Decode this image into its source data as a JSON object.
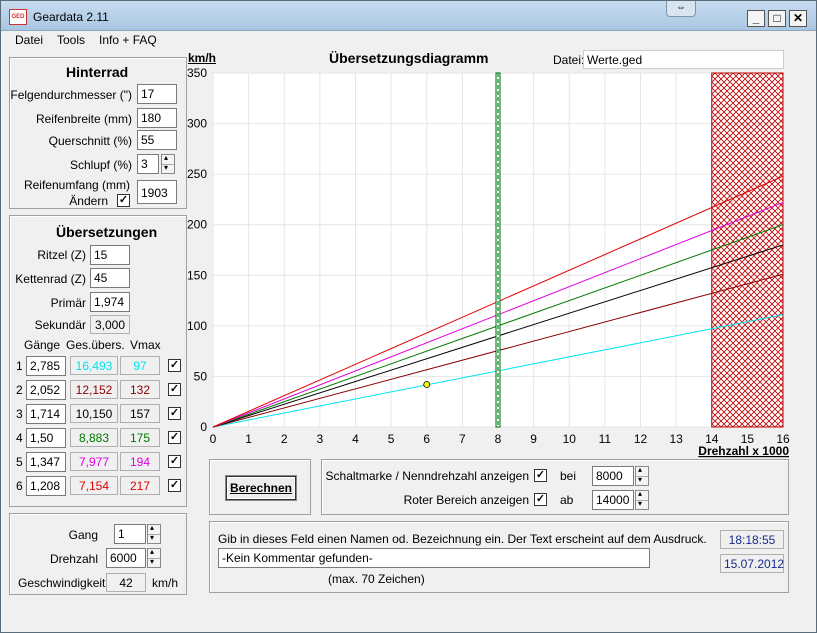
{
  "window": {
    "title": "Geardata 2.11",
    "icon": "GED"
  },
  "menu": [
    "Datei",
    "Tools",
    "Info + FAQ"
  ],
  "hinterrad": {
    "title": "Hinterrad",
    "felgen_label": "Felgendurchmesser (\")",
    "felgen_value": "17",
    "breite_label": "Reifenbreite (mm)",
    "breite_value": "180",
    "quer_label": "Querschnitt (%)",
    "quer_value": "55",
    "schlupf_label": "Schlupf (%)",
    "schlupf_value": "3",
    "umfang_label": "Reifenumfang (mm)",
    "aendern_label": "Ändern",
    "umfang_value": "1903"
  },
  "uebersetzungen": {
    "title": "Übersetzungen",
    "ritzel_label": "Ritzel (Z)",
    "ritzel_value": "15",
    "kettenrad_label": "Kettenrad (Z)",
    "kettenrad_value": "45",
    "primaer_label": "Primär",
    "primaer_value": "1,974",
    "sekundaer_label": "Sekundär",
    "sekundaer_value": "3,000",
    "col_gaenge": "Gänge",
    "col_gesuebers": "Ges.übers.",
    "col_vmax": "Vmax",
    "gears": [
      {
        "num": "1",
        "ratio": "2,785",
        "total": "16,493",
        "vmax": "97",
        "color": "#00e5ee"
      },
      {
        "num": "2",
        "ratio": "2,052",
        "total": "12,152",
        "vmax": "132",
        "color": "#8b0000"
      },
      {
        "num": "3",
        "ratio": "1,714",
        "total": "10,150",
        "vmax": "157",
        "color": "#000000"
      },
      {
        "num": "4",
        "ratio": "1,50",
        "total": "8,883",
        "vmax": "175",
        "color": "#007a00"
      },
      {
        "num": "5",
        "ratio": "1,347",
        "total": "7,977",
        "vmax": "194",
        "color": "#e000e0"
      },
      {
        "num": "6",
        "ratio": "1,208",
        "total": "7,154",
        "vmax": "217",
        "color": "#e00000"
      }
    ]
  },
  "bottom_left": {
    "gang_label": "Gang",
    "gang_value": "1",
    "drehzahl_label": "Drehzahl",
    "drehzahl_value": "6000",
    "geschw_label": "Geschwindigkeit:",
    "geschw_value": "42",
    "geschw_unit": "km/h"
  },
  "chart_header": {
    "unit": "km/h",
    "title": "Übersetzungsdiagramm",
    "datei_label": "Datei:",
    "datei_value": "Werte.ged"
  },
  "chart_data": {
    "type": "line",
    "title": "Übersetzungsdiagramm",
    "xlabel": "Drehzahl x 1000",
    "ylabel": "km/h",
    "xlim": [
      0,
      16
    ],
    "ylim": [
      0,
      350
    ],
    "xticks": [
      "0",
      "1",
      "2",
      "3",
      "4",
      "5",
      "6",
      "7",
      "8",
      "9",
      "10",
      "11",
      "12",
      "13",
      "14",
      "15",
      "16"
    ],
    "yticks": [
      "0",
      "50",
      "100",
      "150",
      "200",
      "250",
      "300",
      "350"
    ],
    "grid": true,
    "shift_marker_x": 8,
    "red_zone_from_x": 14,
    "current_point": {
      "x": 6,
      "y": 42
    },
    "series": [
      {
        "x": [
          0,
          16
        ],
        "y": [
          0,
          111
        ],
        "color": "#00e5ee"
      },
      {
        "x": [
          0,
          16
        ],
        "y": [
          0,
          151
        ],
        "color": "#8b0000"
      },
      {
        "x": [
          0,
          16
        ],
        "y": [
          0,
          180
        ],
        "color": "#000000"
      },
      {
        "x": [
          0,
          16
        ],
        "y": [
          0,
          200
        ],
        "color": "#007a00"
      },
      {
        "x": [
          0,
          16
        ],
        "y": [
          0,
          222
        ],
        "color": "#e000e0"
      },
      {
        "x": [
          0,
          16
        ],
        "y": [
          0,
          248
        ],
        "color": "#e00000"
      }
    ]
  },
  "controls": {
    "berechnen_label": "Berechnen",
    "schaltmarke_label": "Schaltmarke / Nenndrehzahl anzeigen",
    "bei_label": "bei",
    "bei_value": "8000",
    "roter_label": "Roter Bereich anzeigen",
    "ab_label": "ab",
    "ab_value": "14000"
  },
  "comment": {
    "hint": "Gib in dieses Feld einen Namen od. Bezeichnung ein. Der Text erscheint auf dem Ausdruck.",
    "value": "-Kein Kommentar gefunden-",
    "max_label": "(max. 70 Zeichen)",
    "time": "18:18:55",
    "date": "15.07.2012"
  }
}
